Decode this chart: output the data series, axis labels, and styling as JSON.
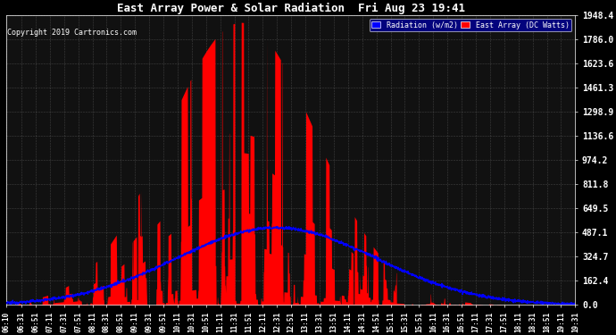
{
  "title": "East Array Power & Solar Radiation  Fri Aug 23 19:41",
  "copyright": "Copyright 2019 Cartronics.com",
  "legend_labels": [
    "Radiation (w/m2)",
    "East Array (DC Watts)"
  ],
  "legend_colors": [
    "#0000ff",
    "#ff0000"
  ],
  "bg_color": "#000000",
  "plot_bg_color": "#111111",
  "grid_color": "#888888",
  "y_min": 0.0,
  "y_max": 1948.4,
  "y_ticks": [
    0.0,
    162.4,
    324.7,
    487.1,
    649.5,
    811.8,
    974.2,
    1136.6,
    1298.9,
    1461.3,
    1623.6,
    1786.0,
    1948.4
  ],
  "radiation_color": "#0000ff",
  "power_color": "#ff0000",
  "time_labels": [
    "06:10",
    "06:31",
    "06:51",
    "07:11",
    "07:31",
    "07:51",
    "08:11",
    "08:31",
    "08:51",
    "09:11",
    "09:31",
    "09:51",
    "10:11",
    "10:31",
    "10:51",
    "11:11",
    "11:31",
    "11:51",
    "12:11",
    "12:31",
    "12:51",
    "13:11",
    "13:31",
    "13:51",
    "14:11",
    "14:31",
    "14:51",
    "15:11",
    "15:31",
    "15:51",
    "16:11",
    "16:31",
    "16:51",
    "17:11",
    "17:31",
    "17:51",
    "18:11",
    "18:31",
    "18:51",
    "19:11",
    "19:31"
  ]
}
